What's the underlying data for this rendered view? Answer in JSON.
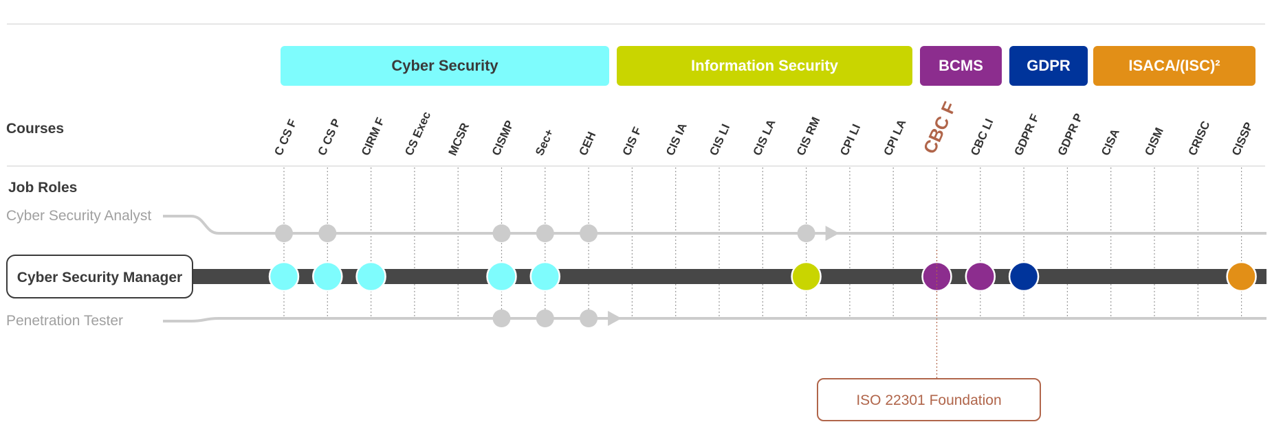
{
  "headings": {
    "courses": "Courses",
    "job_roles": "Job Roles"
  },
  "categories": [
    {
      "label": "Cyber Security",
      "color": "#7efcfd",
      "text_color": "#3a3a3a",
      "from": 0,
      "to": 7
    },
    {
      "label": "Information Security",
      "color": "#c9d500",
      "text_color": "#ffffff",
      "from": 8,
      "to": 14
    },
    {
      "label": "BCMS",
      "color": "#8c2d8e",
      "text_color": "#ffffff",
      "from": 15,
      "to": 16
    },
    {
      "label": "GDPR",
      "color": "#00349b",
      "text_color": "#ffffff",
      "from": 17,
      "to": 18
    },
    {
      "label": "ISACA/(ISC)²",
      "color": "#e28f17",
      "text_color": "#ffffff",
      "from": 19,
      "to": 22
    }
  ],
  "courses": [
    "C CS F",
    "C CS P",
    "CIRM F",
    "CS Exec",
    "MCSR",
    "CISMP",
    "Sec+",
    "CEH",
    "CIS F",
    "CIS IA",
    "CIS LI",
    "CIS LA",
    "CIS RM",
    "CPI LI",
    "CPI LA",
    "CBC F",
    "CBC LI",
    "GDPR F",
    "GDPR P",
    "CISA",
    "CISM",
    "CRISC",
    "CISSP"
  ],
  "highlighted_course": "CBC F",
  "roles": [
    {
      "name": "Cyber Security Analyst",
      "active": false,
      "courses": [
        "C CS F",
        "C CS P",
        "CISMP",
        "Sec+",
        "CEH",
        "CIS RM"
      ],
      "node_color": "#cccccc"
    },
    {
      "name": "Cyber Security Manager",
      "active": true,
      "courses": [
        "C CS F",
        "C CS P",
        "CIRM F",
        "CISMP",
        "Sec+",
        "CIS RM",
        "CBC F",
        "CBC LI",
        "GDPR F",
        "CISSP"
      ]
    },
    {
      "name": "Penetration Tester",
      "active": false,
      "courses": [
        "CISMP",
        "Sec+",
        "CEH"
      ],
      "node_color": "#cccccc"
    }
  ],
  "callout": {
    "course": "CBC F",
    "text": "ISO 22301 Foundation",
    "color": "#b0654a"
  },
  "colors": {
    "track_active": "#474747",
    "track_inactive": "#cccccc",
    "grid": "#999999",
    "rule": "#dddddd"
  }
}
